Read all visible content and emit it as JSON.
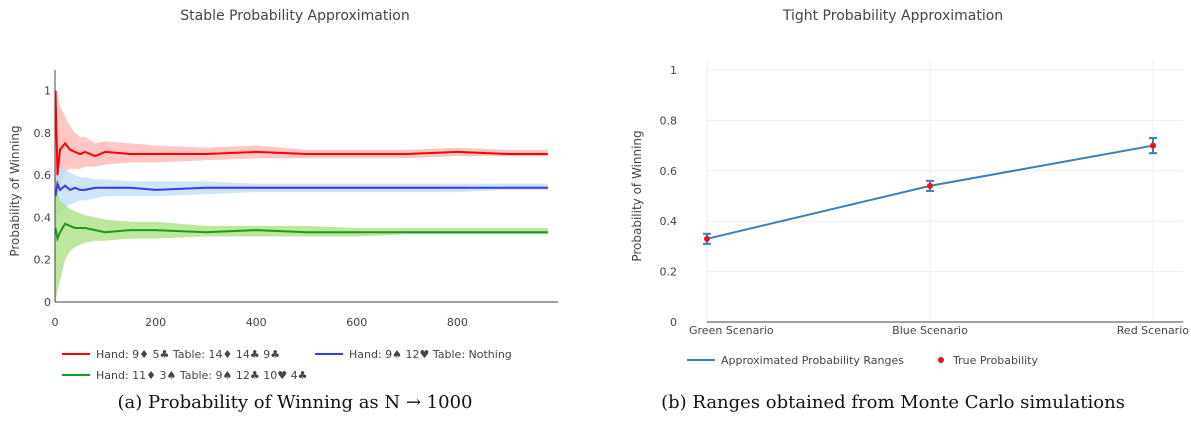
{
  "chart_data": [
    {
      "type": "line",
      "title": "Stable Probability Approximation",
      "xlabel": "",
      "ylabel": "Probability of Winning",
      "xlim": [
        0,
        1000
      ],
      "ylim": [
        0,
        1.05
      ],
      "x_ticks": [
        "0",
        "200",
        "400",
        "600",
        "800"
      ],
      "y_ticks": [
        "0",
        "0.2",
        "0.4",
        "0.6",
        "0.8",
        "1"
      ],
      "grid": false,
      "legend_position": "bottom",
      "series": [
        {
          "name": "Hand: 9♦ 5♣   Table: 14♦ 14♣ 9♣",
          "color": "#ff0000",
          "band_color": "#ffb3b0",
          "x": [
            1,
            5,
            10,
            20,
            30,
            40,
            50,
            60,
            80,
            100,
            150,
            200,
            300,
            400,
            500,
            600,
            700,
            800,
            900,
            980
          ],
          "y": [
            1.0,
            0.6,
            0.72,
            0.75,
            0.72,
            0.71,
            0.7,
            0.71,
            0.69,
            0.71,
            0.7,
            0.7,
            0.7,
            0.71,
            0.7,
            0.7,
            0.7,
            0.71,
            0.7,
            0.7
          ],
          "lower": [
            0.5,
            0.5,
            0.55,
            0.62,
            0.63,
            0.63,
            0.63,
            0.64,
            0.64,
            0.65,
            0.66,
            0.66,
            0.67,
            0.68,
            0.68,
            0.68,
            0.68,
            0.69,
            0.69,
            0.69
          ],
          "upper": [
            1.0,
            1.0,
            0.92,
            0.88,
            0.83,
            0.8,
            0.78,
            0.78,
            0.75,
            0.76,
            0.75,
            0.74,
            0.73,
            0.74,
            0.72,
            0.72,
            0.72,
            0.73,
            0.72,
            0.72
          ]
        },
        {
          "name": "Hand: 9♠ 12♥   Table: Nothing",
          "color": "#3a3ae8",
          "band_color": "#bfdcf8",
          "x": [
            1,
            5,
            10,
            20,
            30,
            40,
            50,
            60,
            80,
            100,
            150,
            200,
            300,
            400,
            500,
            600,
            700,
            800,
            900,
            980
          ],
          "y": [
            0.5,
            0.56,
            0.53,
            0.55,
            0.53,
            0.54,
            0.53,
            0.53,
            0.54,
            0.54,
            0.54,
            0.53,
            0.54,
            0.54,
            0.54,
            0.54,
            0.54,
            0.54,
            0.54,
            0.54
          ],
          "lower": [
            0.3,
            0.4,
            0.42,
            0.45,
            0.46,
            0.47,
            0.48,
            0.48,
            0.49,
            0.5,
            0.5,
            0.5,
            0.51,
            0.52,
            0.52,
            0.52,
            0.52,
            0.52,
            0.53,
            0.53
          ],
          "upper": [
            0.75,
            0.7,
            0.65,
            0.63,
            0.61,
            0.6,
            0.59,
            0.59,
            0.58,
            0.58,
            0.57,
            0.57,
            0.57,
            0.56,
            0.56,
            0.56,
            0.56,
            0.56,
            0.56,
            0.56
          ]
        },
        {
          "name": "Hand: 11♦ 3♠   Table: 9♠ 12♣ 10♥ 4♣",
          "color": "#1a9a1a",
          "band_color": "#a7dd7e",
          "x": [
            1,
            5,
            10,
            20,
            30,
            40,
            50,
            60,
            80,
            100,
            150,
            200,
            300,
            400,
            500,
            600,
            700,
            800,
            900,
            980
          ],
          "y": [
            0.35,
            0.3,
            0.33,
            0.37,
            0.36,
            0.35,
            0.35,
            0.35,
            0.34,
            0.33,
            0.34,
            0.34,
            0.33,
            0.34,
            0.33,
            0.33,
            0.33,
            0.33,
            0.33,
            0.33
          ],
          "lower": [
            0.0,
            0.05,
            0.1,
            0.2,
            0.24,
            0.26,
            0.27,
            0.28,
            0.29,
            0.29,
            0.3,
            0.3,
            0.31,
            0.31,
            0.31,
            0.31,
            0.32,
            0.32,
            0.32,
            0.32
          ],
          "upper": [
            0.6,
            0.52,
            0.48,
            0.46,
            0.44,
            0.43,
            0.42,
            0.41,
            0.4,
            0.39,
            0.38,
            0.38,
            0.36,
            0.36,
            0.36,
            0.35,
            0.35,
            0.35,
            0.35,
            0.35
          ]
        }
      ],
      "caption": "(a) Probability of Winning as N → 1000"
    },
    {
      "type": "line",
      "title": "Tight Probability Approximation",
      "xlabel": "",
      "ylabel": "Probability of Winning",
      "ylim": [
        0,
        1
      ],
      "categories": [
        "Green Scenario",
        "Blue Scenario",
        "Red Scenario"
      ],
      "y_ticks": [
        "0",
        "0.2",
        "0.4",
        "0.6",
        "0.8",
        "1"
      ],
      "grid": true,
      "legend_position": "bottom",
      "series": [
        {
          "name": "Approximated Probability Ranges",
          "color": "#3a7fc0",
          "values": [
            0.33,
            0.54,
            0.7
          ],
          "error_low": [
            0.31,
            0.52,
            0.67
          ],
          "error_high": [
            0.35,
            0.56,
            0.73
          ]
        },
        {
          "name": "True Probability",
          "color": "#ee1111",
          "values": [
            0.33,
            0.54,
            0.7
          ]
        }
      ],
      "caption": "(b) Ranges obtained from Monte Carlo simulations"
    }
  ]
}
